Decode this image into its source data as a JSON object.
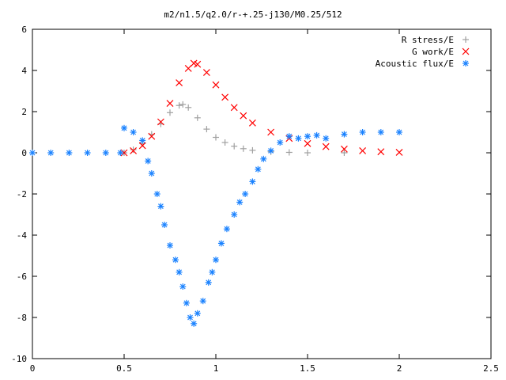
{
  "chart_data": {
    "type": "scatter",
    "title": "m2/n1.5/q2.0/r-+.25-j130/M0.25/512",
    "xlabel": "",
    "ylabel": "",
    "xlim": [
      0,
      2.5
    ],
    "ylim": [
      -10,
      6
    ],
    "xticks": [
      "0",
      "0.5",
      "1",
      "1.5",
      "2",
      "2.5"
    ],
    "yticks": [
      "-10",
      "-8",
      "-6",
      "-4",
      "-2",
      "0",
      "2",
      "4",
      "6"
    ],
    "grid": false,
    "legend_position": "top-right",
    "series": [
      {
        "name": "R stress/E",
        "marker": "plus",
        "color": "#a0a0a0",
        "points": [
          [
            0.5,
            0.0
          ],
          [
            0.55,
            0.15
          ],
          [
            0.6,
            0.45
          ],
          [
            0.65,
            0.9
          ],
          [
            0.7,
            1.4
          ],
          [
            0.75,
            1.95
          ],
          [
            0.8,
            2.3
          ],
          [
            0.82,
            2.35
          ],
          [
            0.85,
            2.2
          ],
          [
            0.9,
            1.7
          ],
          [
            0.95,
            1.15
          ],
          [
            1.0,
            0.75
          ],
          [
            1.05,
            0.5
          ],
          [
            1.1,
            0.32
          ],
          [
            1.15,
            0.2
          ],
          [
            1.2,
            0.12
          ],
          [
            1.3,
            0.05
          ],
          [
            1.4,
            0.02
          ],
          [
            1.5,
            0.0
          ],
          [
            1.7,
            0.0
          ]
        ]
      },
      {
        "name": "G work/E",
        "marker": "cross",
        "color": "#ff0000",
        "points": [
          [
            0.5,
            0.0
          ],
          [
            0.55,
            0.1
          ],
          [
            0.6,
            0.35
          ],
          [
            0.65,
            0.8
          ],
          [
            0.7,
            1.5
          ],
          [
            0.75,
            2.4
          ],
          [
            0.8,
            3.4
          ],
          [
            0.85,
            4.1
          ],
          [
            0.88,
            4.35
          ],
          [
            0.9,
            4.3
          ],
          [
            0.95,
            3.9
          ],
          [
            1.0,
            3.3
          ],
          [
            1.05,
            2.7
          ],
          [
            1.1,
            2.2
          ],
          [
            1.15,
            1.8
          ],
          [
            1.2,
            1.45
          ],
          [
            1.3,
            1.0
          ],
          [
            1.4,
            0.7
          ],
          [
            1.5,
            0.45
          ],
          [
            1.6,
            0.3
          ],
          [
            1.7,
            0.18
          ],
          [
            1.8,
            0.1
          ],
          [
            1.9,
            0.05
          ],
          [
            2.0,
            0.02
          ]
        ]
      },
      {
        "name": "Acoustic flux/E",
        "marker": "star",
        "color": "#1a82ff",
        "points": [
          [
            0.0,
            0.0
          ],
          [
            0.1,
            0.0
          ],
          [
            0.2,
            0.0
          ],
          [
            0.3,
            0.0
          ],
          [
            0.4,
            0.0
          ],
          [
            0.48,
            0.0
          ],
          [
            0.5,
            1.2
          ],
          [
            0.55,
            1.0
          ],
          [
            0.6,
            0.6
          ],
          [
            0.63,
            -0.4
          ],
          [
            0.65,
            -1.0
          ],
          [
            0.68,
            -2.0
          ],
          [
            0.7,
            -2.6
          ],
          [
            0.72,
            -3.5
          ],
          [
            0.75,
            -4.5
          ],
          [
            0.78,
            -5.2
          ],
          [
            0.8,
            -5.8
          ],
          [
            0.82,
            -6.5
          ],
          [
            0.84,
            -7.3
          ],
          [
            0.86,
            -8.0
          ],
          [
            0.88,
            -8.3
          ],
          [
            0.9,
            -7.8
          ],
          [
            0.93,
            -7.2
          ],
          [
            0.96,
            -6.3
          ],
          [
            0.98,
            -5.8
          ],
          [
            1.0,
            -5.2
          ],
          [
            1.03,
            -4.4
          ],
          [
            1.06,
            -3.7
          ],
          [
            1.1,
            -3.0
          ],
          [
            1.13,
            -2.4
          ],
          [
            1.16,
            -2.0
          ],
          [
            1.2,
            -1.4
          ],
          [
            1.23,
            -0.8
          ],
          [
            1.26,
            -0.3
          ],
          [
            1.3,
            0.1
          ],
          [
            1.35,
            0.5
          ],
          [
            1.4,
            0.8
          ],
          [
            1.45,
            0.7
          ],
          [
            1.5,
            0.8
          ],
          [
            1.55,
            0.85
          ],
          [
            1.6,
            0.7
          ],
          [
            1.7,
            0.9
          ],
          [
            1.8,
            1.0
          ],
          [
            1.9,
            1.0
          ],
          [
            2.0,
            1.0
          ]
        ]
      }
    ]
  }
}
